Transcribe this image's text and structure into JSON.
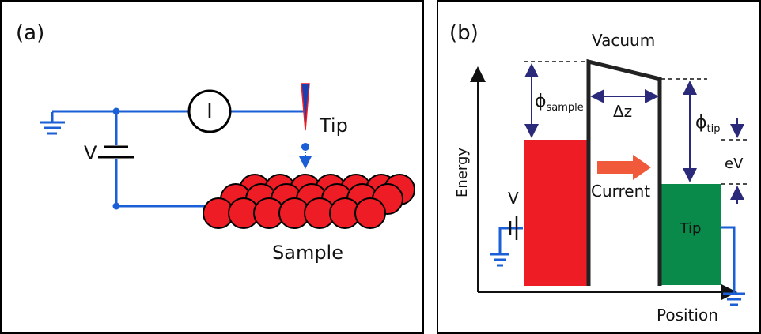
{
  "panel_a": {
    "label": "(a)",
    "meter_symbol": "I",
    "voltage_label": "V",
    "tip_label": "Tip",
    "sample_label": "Sample"
  },
  "panel_b": {
    "label": "(b)",
    "vacuum_label": "Vacuum",
    "energy_axis_label": "Energy",
    "position_axis_label": "Position",
    "phi_symbol": "ϕ",
    "phi_sample_subscript": "sample",
    "phi_tip_subscript": "tip",
    "gap_label": "Δz",
    "current_label": "Current",
    "bias_label": "eV",
    "voltage_label": "V",
    "tip_label": "Tip"
  },
  "colors": {
    "wire": "#1a5fd6",
    "atom": "#ee1c25",
    "sample_block": "#ee1c25",
    "tip_block": "#0a8a4a",
    "arrow_current": "#f05a3a",
    "dimension_arrow": "#2b2a7a",
    "frame": "#000000"
  }
}
